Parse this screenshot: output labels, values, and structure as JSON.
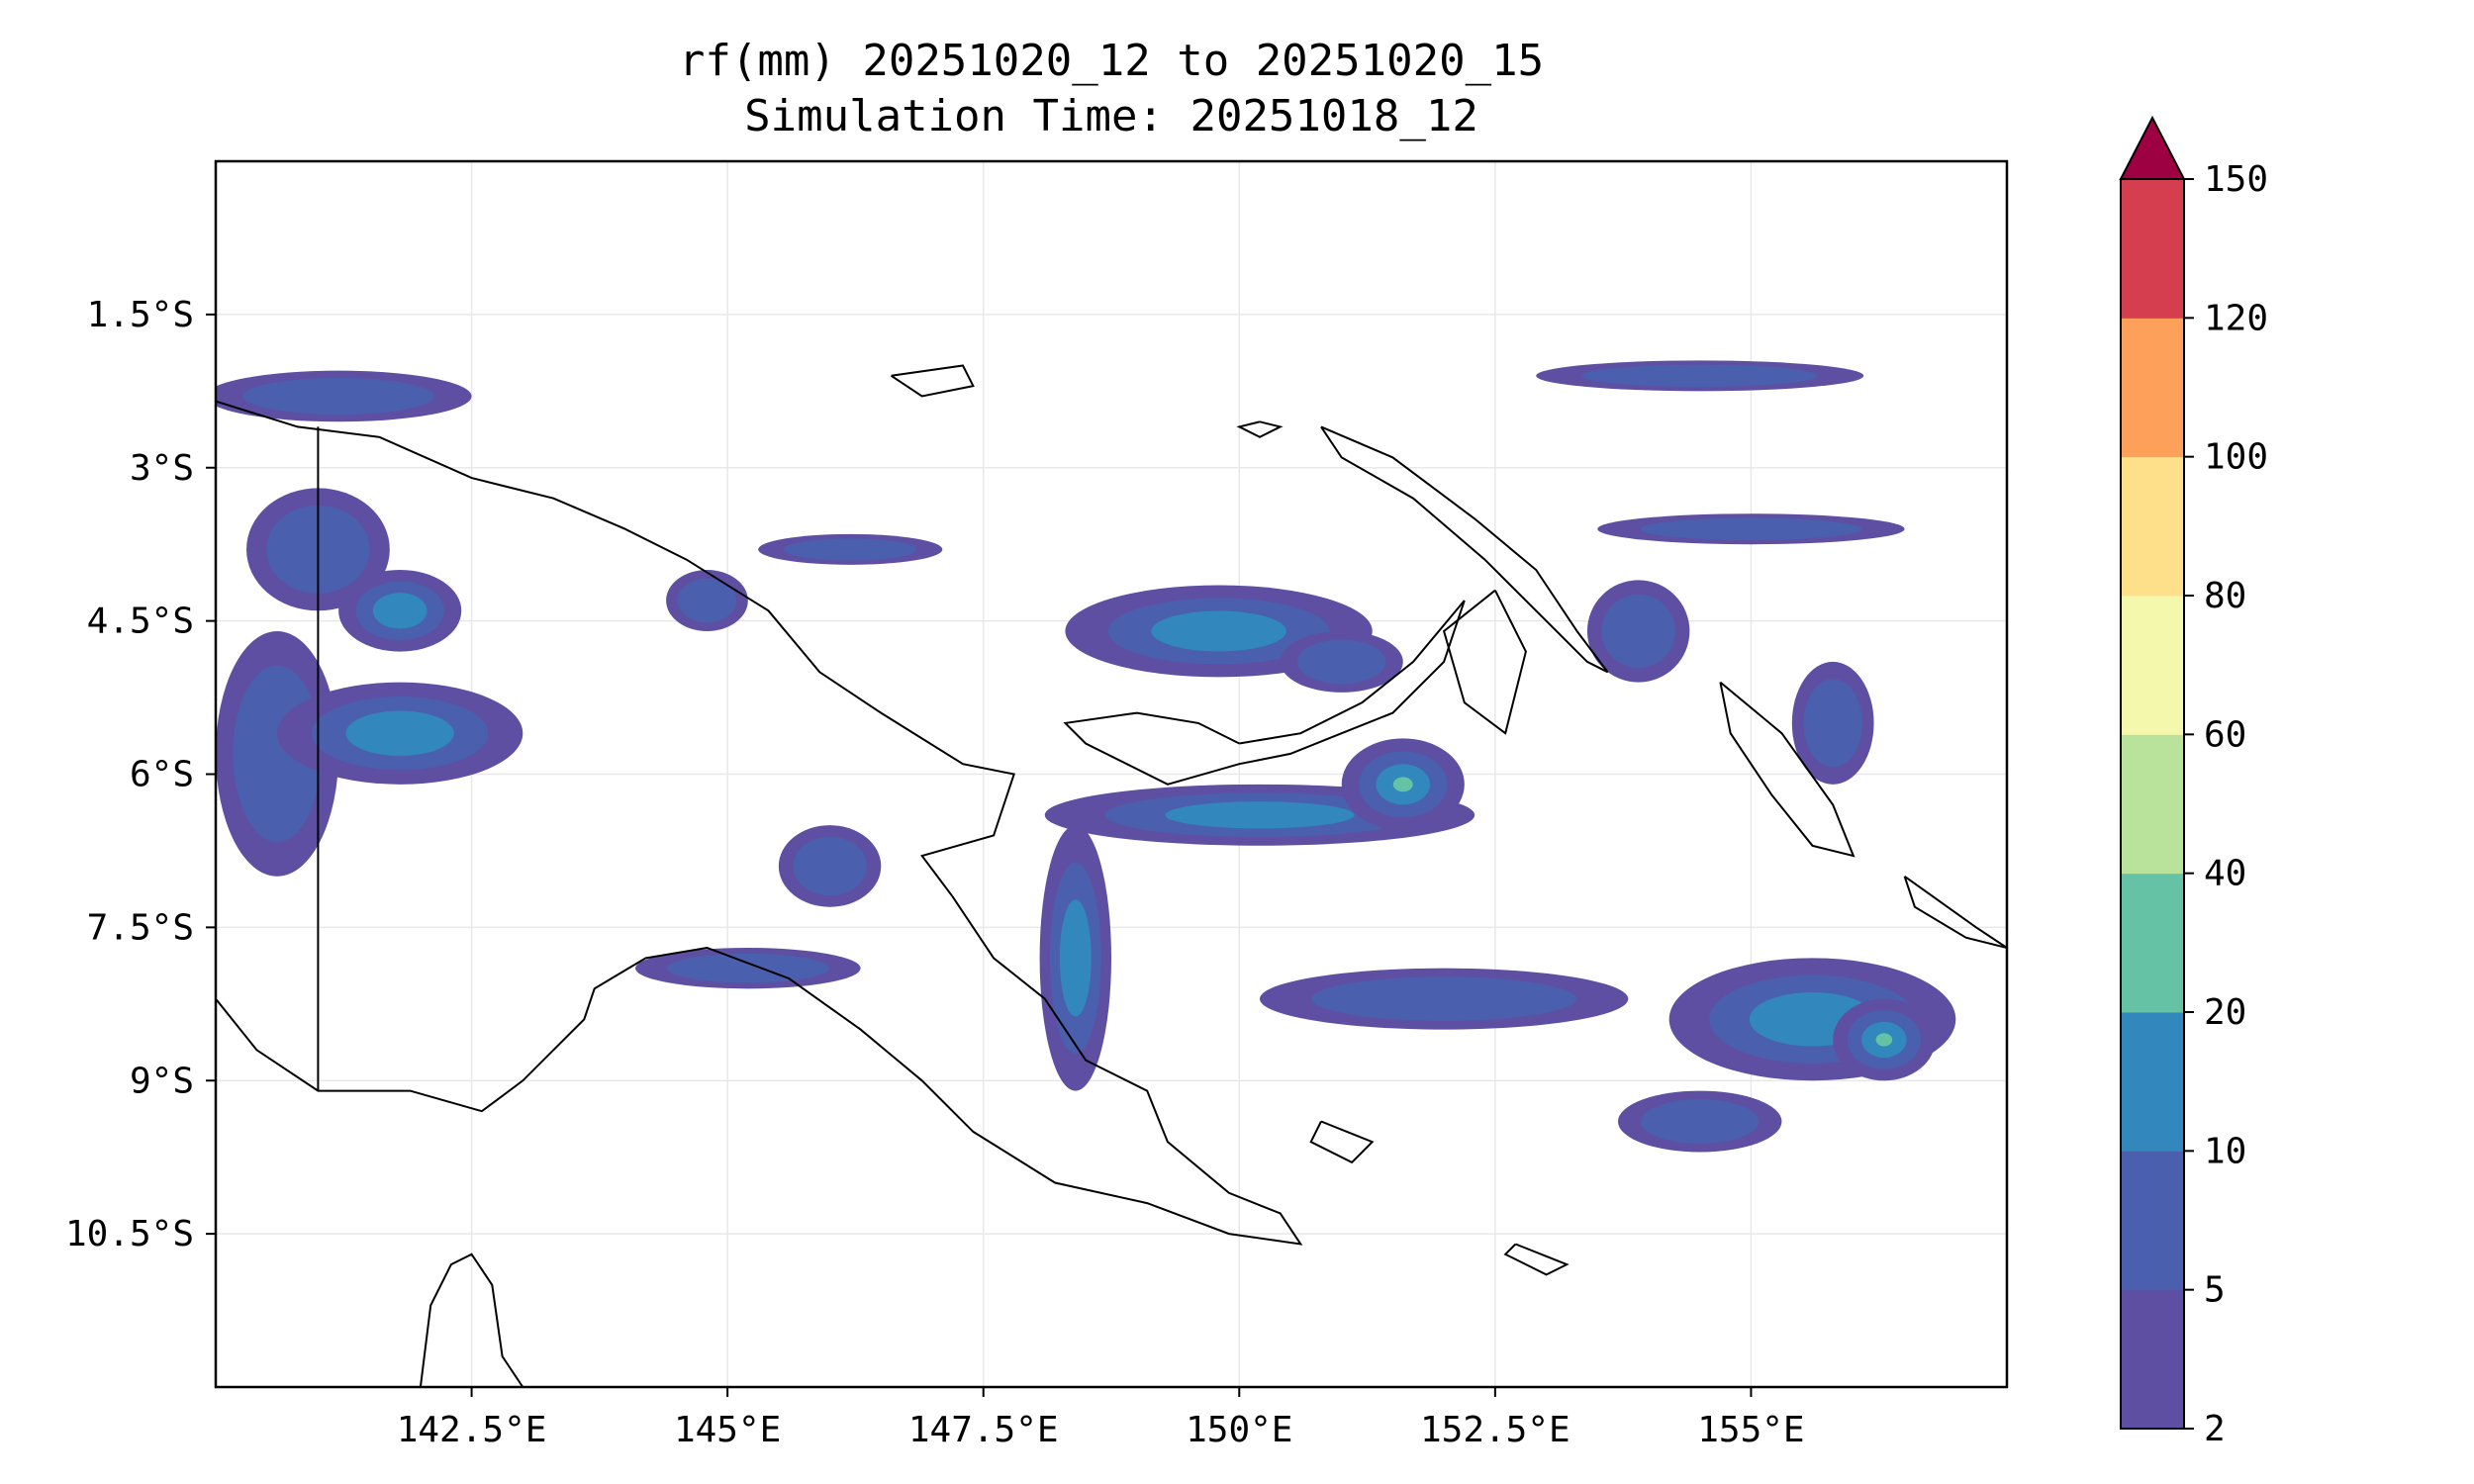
{
  "title_line1": "rf(mm) 20251020_12 to 20251020_15",
  "title_line2": "Simulation Time: 20251018_12",
  "map": {
    "lon_range": [
      140.0,
      157.5
    ],
    "lat_range": [
      -12.0,
      -0.0
    ]
  },
  "x_ticks": [
    {
      "value": 142.5,
      "label": "142.5°E"
    },
    {
      "value": 145.0,
      "label": "145°E"
    },
    {
      "value": 147.5,
      "label": "147.5°E"
    },
    {
      "value": 150.0,
      "label": "150°E"
    },
    {
      "value": 152.5,
      "label": "152.5°E"
    },
    {
      "value": 155.0,
      "label": "155°E"
    }
  ],
  "y_ticks": [
    {
      "value": -1.5,
      "label": "1.5°S"
    },
    {
      "value": -3.0,
      "label": "3°S"
    },
    {
      "value": -4.5,
      "label": "4.5°S"
    },
    {
      "value": -6.0,
      "label": "6°S"
    },
    {
      "value": -7.5,
      "label": "7.5°S"
    },
    {
      "value": -9.0,
      "label": "9°S"
    },
    {
      "value": -10.5,
      "label": "10.5°S"
    }
  ],
  "colorbar": {
    "levels": [
      2,
      5,
      10,
      20,
      40,
      60,
      80,
      100,
      120,
      150
    ],
    "labels": [
      "2",
      "5",
      "10",
      "20",
      "40",
      "60",
      "80",
      "100",
      "120",
      "150"
    ],
    "colors": [
      "#5e4fa2",
      "#4a5fad",
      "#3288bd",
      "#66c2a5",
      "#b9e39b",
      "#f4f8ad",
      "#fee08b",
      "#fca05a",
      "#d53e4f"
    ],
    "extend_color": "#9e0142"
  },
  "rain_regions": [
    {
      "lon": 141.0,
      "lat": -3.8,
      "rx": 0.7,
      "ry": 0.6,
      "level": 1
    },
    {
      "lon": 140.6,
      "lat": -5.8,
      "rx": 0.6,
      "ry": 1.2,
      "level": 1
    },
    {
      "lon": 141.8,
      "lat": -5.6,
      "rx": 1.2,
      "ry": 0.5,
      "level": 2
    },
    {
      "lon": 141.2,
      "lat": -2.3,
      "rx": 1.3,
      "ry": 0.25,
      "level": 1
    },
    {
      "lon": 141.8,
      "lat": -4.4,
      "rx": 0.6,
      "ry": 0.4,
      "level": 2
    },
    {
      "lon": 149.8,
      "lat": -4.6,
      "rx": 1.5,
      "ry": 0.45,
      "level": 2
    },
    {
      "lon": 151.0,
      "lat": -4.9,
      "rx": 0.6,
      "ry": 0.3,
      "level": 1
    },
    {
      "lon": 148.4,
      "lat": -7.8,
      "rx": 0.35,
      "ry": 1.3,
      "level": 2
    },
    {
      "lon": 150.2,
      "lat": -6.4,
      "rx": 2.1,
      "ry": 0.3,
      "level": 2
    },
    {
      "lon": 151.6,
      "lat": -6.1,
      "rx": 0.6,
      "ry": 0.45,
      "level": 3
    },
    {
      "lon": 152.0,
      "lat": -8.2,
      "rx": 1.8,
      "ry": 0.3,
      "level": 1
    },
    {
      "lon": 155.6,
      "lat": -8.4,
      "rx": 1.4,
      "ry": 0.6,
      "level": 2
    },
    {
      "lon": 156.3,
      "lat": -8.6,
      "rx": 0.5,
      "ry": 0.4,
      "level": 3
    },
    {
      "lon": 146.0,
      "lat": -6.9,
      "rx": 0.5,
      "ry": 0.4,
      "level": 1
    },
    {
      "lon": 145.2,
      "lat": -7.9,
      "rx": 1.1,
      "ry": 0.2,
      "level": 1
    },
    {
      "lon": 155.0,
      "lat": -3.6,
      "rx": 1.5,
      "ry": 0.15,
      "level": 1
    },
    {
      "lon": 154.5,
      "lat": -2.1,
      "rx": 1.6,
      "ry": 0.15,
      "level": 1
    },
    {
      "lon": 153.9,
      "lat": -4.6,
      "rx": 0.5,
      "ry": 0.5,
      "level": 1
    },
    {
      "lon": 155.8,
      "lat": -5.5,
      "rx": 0.4,
      "ry": 0.6,
      "level": 1
    },
    {
      "lon": 154.5,
      "lat": -9.4,
      "rx": 0.8,
      "ry": 0.3,
      "level": 1
    },
    {
      "lon": 144.8,
      "lat": -4.3,
      "rx": 0.4,
      "ry": 0.3,
      "level": 1
    },
    {
      "lon": 146.2,
      "lat": -3.8,
      "rx": 0.9,
      "ry": 0.15,
      "level": 1
    }
  ],
  "coastlines": [
    [
      [
        140.0,
        -2.35
      ],
      [
        140.8,
        -2.6
      ],
      [
        141.6,
        -2.7
      ],
      [
        142.5,
        -3.1
      ],
      [
        143.3,
        -3.3
      ],
      [
        144.0,
        -3.6
      ],
      [
        144.6,
        -3.9
      ],
      [
        145.4,
        -4.4
      ],
      [
        145.9,
        -5.0
      ],
      [
        146.5,
        -5.4
      ],
      [
        147.3,
        -5.9
      ],
      [
        147.8,
        -6.0
      ],
      [
        147.6,
        -6.6
      ],
      [
        146.9,
        -6.8
      ],
      [
        147.2,
        -7.2
      ],
      [
        147.6,
        -7.8
      ],
      [
        148.1,
        -8.2
      ],
      [
        148.5,
        -8.8
      ],
      [
        149.1,
        -9.1
      ],
      [
        149.3,
        -9.6
      ],
      [
        149.9,
        -10.1
      ],
      [
        150.4,
        -10.3
      ],
      [
        150.6,
        -10.6
      ],
      [
        149.9,
        -10.5
      ],
      [
        149.1,
        -10.2
      ],
      [
        148.2,
        -10.0
      ],
      [
        147.4,
        -9.5
      ],
      [
        146.9,
        -9.0
      ],
      [
        146.3,
        -8.5
      ],
      [
        145.6,
        -8.0
      ],
      [
        144.8,
        -7.7
      ],
      [
        144.2,
        -7.8
      ],
      [
        143.7,
        -8.1
      ],
      [
        143.6,
        -8.4
      ],
      [
        143.0,
        -9.0
      ],
      [
        142.6,
        -9.3
      ],
      [
        141.9,
        -9.1
      ],
      [
        141.0,
        -9.1
      ],
      [
        140.4,
        -8.7
      ],
      [
        140.0,
        -8.2
      ]
    ],
    [
      [
        141.0,
        -2.6
      ],
      [
        141.0,
        -9.1
      ]
    ],
    [
      [
        150.0,
        -5.7
      ],
      [
        150.6,
        -5.6
      ],
      [
        151.2,
        -5.3
      ],
      [
        151.7,
        -4.9
      ],
      [
        152.2,
        -4.3
      ],
      [
        152.0,
        -4.9
      ],
      [
        151.5,
        -5.4
      ],
      [
        151.0,
        -5.6
      ],
      [
        150.5,
        -5.8
      ],
      [
        150.0,
        -5.9
      ],
      [
        149.3,
        -6.1
      ],
      [
        148.5,
        -5.7
      ],
      [
        148.3,
        -5.5
      ],
      [
        149.0,
        -5.4
      ],
      [
        149.6,
        -5.5
      ],
      [
        150.0,
        -5.7
      ]
    ],
    [
      [
        152.5,
        -4.2
      ],
      [
        152.8,
        -4.8
      ],
      [
        152.6,
        -5.6
      ],
      [
        152.2,
        -5.3
      ],
      [
        152.0,
        -4.6
      ],
      [
        152.5,
        -4.2
      ]
    ],
    [
      [
        150.8,
        -2.6
      ],
      [
        151.5,
        -2.9
      ],
      [
        152.3,
        -3.5
      ],
      [
        152.9,
        -4.0
      ],
      [
        153.3,
        -4.6
      ],
      [
        153.6,
        -5.0
      ],
      [
        153.4,
        -4.9
      ],
      [
        152.9,
        -4.4
      ],
      [
        152.4,
        -3.9
      ],
      [
        151.7,
        -3.3
      ],
      [
        151.0,
        -2.9
      ],
      [
        150.8,
        -2.6
      ]
    ],
    [
      [
        154.7,
        -5.1
      ],
      [
        155.3,
        -5.6
      ],
      [
        155.8,
        -6.3
      ],
      [
        156.0,
        -6.8
      ],
      [
        155.6,
        -6.7
      ],
      [
        155.2,
        -6.2
      ],
      [
        154.8,
        -5.6
      ],
      [
        154.7,
        -5.1
      ]
    ],
    [
      [
        146.6,
        -2.1
      ],
      [
        147.3,
        -2.0
      ],
      [
        147.4,
        -2.2
      ],
      [
        146.9,
        -2.3
      ],
      [
        146.6,
        -2.1
      ]
    ],
    [
      [
        150.2,
        -2.55
      ],
      [
        150.4,
        -2.6
      ],
      [
        150.2,
        -2.7
      ],
      [
        150.0,
        -2.6
      ],
      [
        150.2,
        -2.55
      ]
    ],
    [
      [
        156.5,
        -7.0
      ],
      [
        157.2,
        -7.5
      ],
      [
        157.5,
        -7.7
      ],
      [
        157.1,
        -7.6
      ],
      [
        156.6,
        -7.3
      ],
      [
        156.5,
        -7.0
      ]
    ],
    [
      [
        150.8,
        -9.4
      ],
      [
        151.3,
        -9.6
      ],
      [
        151.1,
        -9.8
      ],
      [
        150.7,
        -9.6
      ],
      [
        150.8,
        -9.4
      ]
    ],
    [
      [
        152.7,
        -10.6
      ],
      [
        153.2,
        -10.8
      ],
      [
        153.0,
        -10.9
      ],
      [
        152.6,
        -10.7
      ],
      [
        152.7,
        -10.6
      ]
    ],
    [
      [
        142.0,
        -12.0
      ],
      [
        142.1,
        -11.2
      ],
      [
        142.3,
        -10.8
      ],
      [
        142.5,
        -10.7
      ],
      [
        142.7,
        -11.0
      ],
      [
        142.8,
        -11.7
      ],
      [
        143.0,
        -12.0
      ]
    ]
  ]
}
